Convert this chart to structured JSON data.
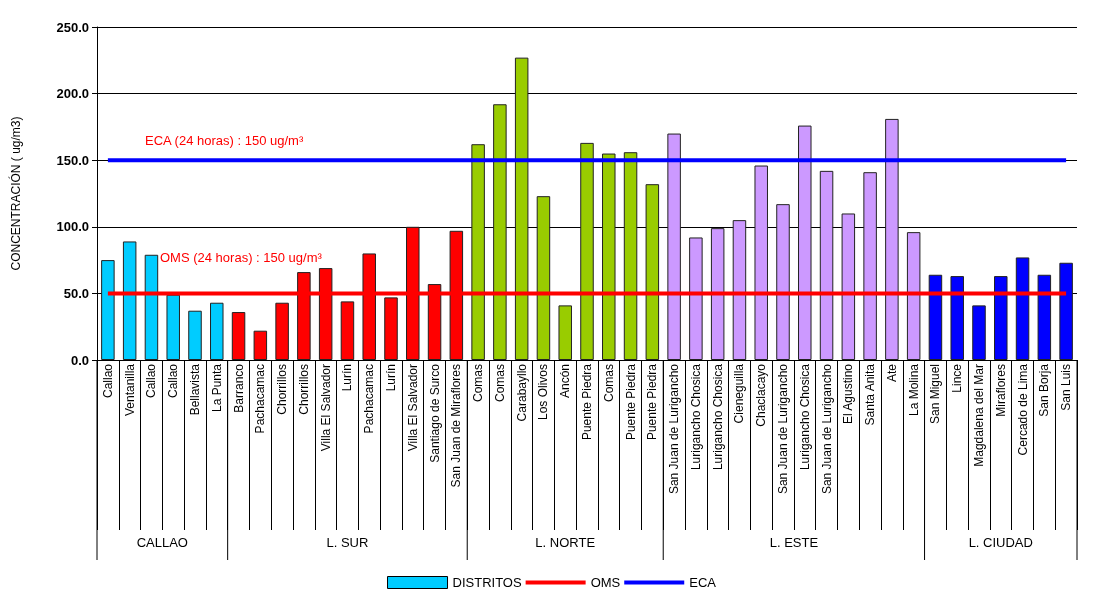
{
  "chart_data": {
    "type": "bar",
    "ylabel": "CONCENTRACIÓN ( ug/m3)",
    "categories": [
      "Callao",
      "Ventanilla",
      "Callao",
      "Callao",
      "Bellavista",
      "La Punta",
      "Barranco",
      "Pachacamac",
      "Chorrillos",
      "Chorrillos",
      "Villa El Salvador",
      "Lurín",
      "Pachacamac",
      "Lurín",
      "Villa El Salvador",
      "Santiago de Surco",
      "San Juan de Miraflores",
      "Comas",
      "Comas",
      "Carabayllo",
      "Los Olivos",
      "Ancón",
      "Puente Piedra",
      "Comas",
      "Puente Piedra",
      "Puente Piedra",
      "San Juan de Lurigancho",
      "Lurigancho Chosica",
      "Lurigancho Chosica",
      "Cieneguilla",
      "Chaclacayo",
      "San Juan de Lurigancho",
      "Lurigancho Chosica",
      "San Juan de Lurigancho",
      "El Agustino",
      "Santa Anita",
      "Ate",
      "La Molina",
      "San Miguel",
      "Lince",
      "Magdalena del Mar",
      "Miraflores",
      "Cercado de Lima",
      "San Borja",
      "San Luis"
    ],
    "series": [
      {
        "name": "DISTRITOS",
        "color": "#00ccff",
        "values": [
          75,
          89,
          79,
          49,
          37,
          43,
          36,
          22,
          43,
          66,
          69,
          44,
          80,
          47,
          100,
          57,
          97,
          162,
          192,
          227,
          123,
          41,
          163,
          155,
          156,
          132,
          170,
          92,
          99,
          105,
          146,
          117,
          176,
          142,
          110,
          141,
          181,
          96,
          64,
          63,
          41,
          63,
          77,
          64,
          73
        ],
        "colors": [
          "#00ccff",
          "#00ccff",
          "#00ccff",
          "#00ccff",
          "#00ccff",
          "#00ccff",
          "#ff0000",
          "#ff0000",
          "#ff0000",
          "#ff0000",
          "#ff0000",
          "#ff0000",
          "#ff0000",
          "#ff0000",
          "#ff0000",
          "#ff0000",
          "#ff0000",
          "#99cc00",
          "#99cc00",
          "#99cc00",
          "#99cc00",
          "#99cc00",
          "#99cc00",
          "#99cc00",
          "#99cc00",
          "#99cc00",
          "#cc99ff",
          "#cc99ff",
          "#cc99ff",
          "#cc99ff",
          "#cc99ff",
          "#cc99ff",
          "#cc99ff",
          "#cc99ff",
          "#cc99ff",
          "#cc99ff",
          "#cc99ff",
          "#cc99ff",
          "#0000ff",
          "#0000ff",
          "#0000ff",
          "#0000ff",
          "#0000ff",
          "#0000ff",
          "#0000ff"
        ]
      },
      {
        "name": "OMS",
        "type": "line",
        "color": "#ff0000",
        "values": [
          50,
          50,
          50,
          50,
          50,
          50,
          50,
          50,
          50,
          50,
          50,
          50,
          50,
          50,
          50,
          50,
          50,
          50,
          50,
          50,
          50,
          50,
          50,
          50,
          50,
          50,
          50,
          50,
          50,
          50,
          50,
          50,
          50,
          50,
          50,
          50,
          50,
          50,
          50,
          50,
          50,
          50,
          50,
          50,
          50
        ]
      },
      {
        "name": "ECA",
        "type": "line",
        "color": "#0000ff",
        "values": [
          150,
          150,
          150,
          150,
          150,
          150,
          150,
          150,
          150,
          150,
          150,
          150,
          150,
          150,
          150,
          150,
          150,
          150,
          150,
          150,
          150,
          150,
          150,
          150,
          150,
          150,
          150,
          150,
          150,
          150,
          150,
          150,
          150,
          150,
          150,
          150,
          150,
          150,
          150,
          150,
          150,
          150,
          150,
          150,
          150
        ]
      }
    ],
    "ylim": [
      0,
      250
    ],
    "yticks": [
      {
        "value": 0,
        "label": "0.0"
      },
      {
        "value": 50,
        "label": "50.0"
      },
      {
        "value": 100,
        "label": "100.0"
      },
      {
        "value": 150,
        "label": "150.0"
      },
      {
        "value": 200,
        "label": "200.0"
      },
      {
        "value": 250,
        "label": "250.0"
      }
    ],
    "grid": "y",
    "legend": "bottom",
    "marker": "none",
    "annotations": [
      "ECA (24 horas) : 150 ug/m³",
      "OMS (24 horas) : 150 ug/m³",
      "CALLAO",
      "L. SUR",
      "L. NORTE",
      "L. ESTE",
      "L. CIUDAD"
    ]
  }
}
